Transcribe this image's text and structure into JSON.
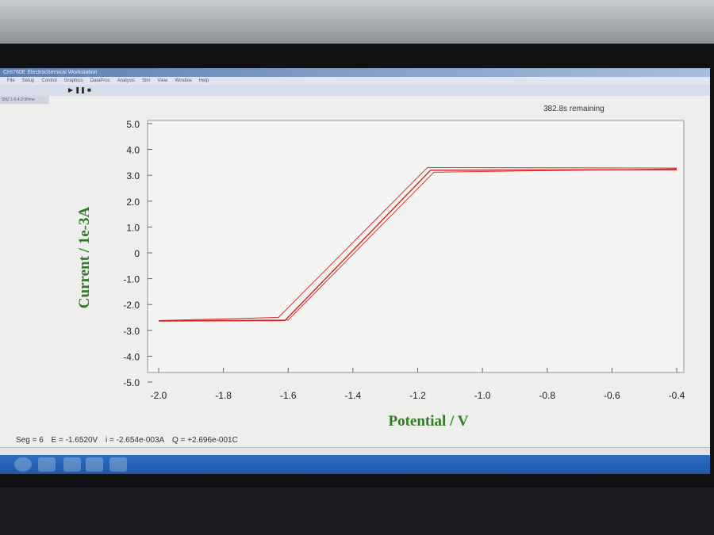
{
  "window": {
    "title": "CHI760E Electrochemical Workstation",
    "menu": [
      "File",
      "Setup",
      "Control",
      "Graphics",
      "DataProc",
      "Analysis",
      "Sim",
      "View",
      "Window",
      "Help"
    ],
    "subtab": "SN2 1-0.4-2.0Hmo"
  },
  "remaining": "382.8s remaining",
  "status": {
    "seg": "Seg = 6",
    "e": "E = -1.6520V",
    "i": "i = -2.654e-003A",
    "q": "Q = +2.696e-001C"
  },
  "colors": {
    "curve": "#d42020",
    "axis_label": "#2e7d22"
  },
  "chart_data": {
    "type": "line",
    "xlabel": "Potential / V",
    "ylabel": "Current / 1e-3A",
    "xlim": [
      -2.0,
      -0.4
    ],
    "ylim": [
      -5.0,
      5.0
    ],
    "xticks": [
      "-2.0",
      "-1.8",
      "-1.6",
      "-1.4",
      "-1.2",
      "-1.0",
      "-0.8",
      "-0.6",
      "-0.4"
    ],
    "yticks": [
      "5.0",
      "4.0",
      "3.0",
      "2.0",
      "1.0",
      "0",
      "-1.0",
      "-2.0",
      "-3.0",
      "-4.0",
      "-5.0"
    ],
    "grid": false,
    "series": [
      {
        "x": [
          -2.0,
          -1.6,
          -1.15,
          -0.4
        ],
        "y": [
          -2.62,
          -2.6,
          3.12,
          3.25
        ]
      },
      {
        "x": [
          -0.4,
          -1.17,
          -1.63,
          -2.0
        ],
        "y": [
          3.28,
          3.3,
          -2.5,
          -2.62
        ]
      },
      {
        "x": [
          -2.0,
          -1.61,
          -1.16,
          -0.4
        ],
        "y": [
          -2.64,
          -2.62,
          3.2,
          3.22
        ]
      }
    ]
  }
}
